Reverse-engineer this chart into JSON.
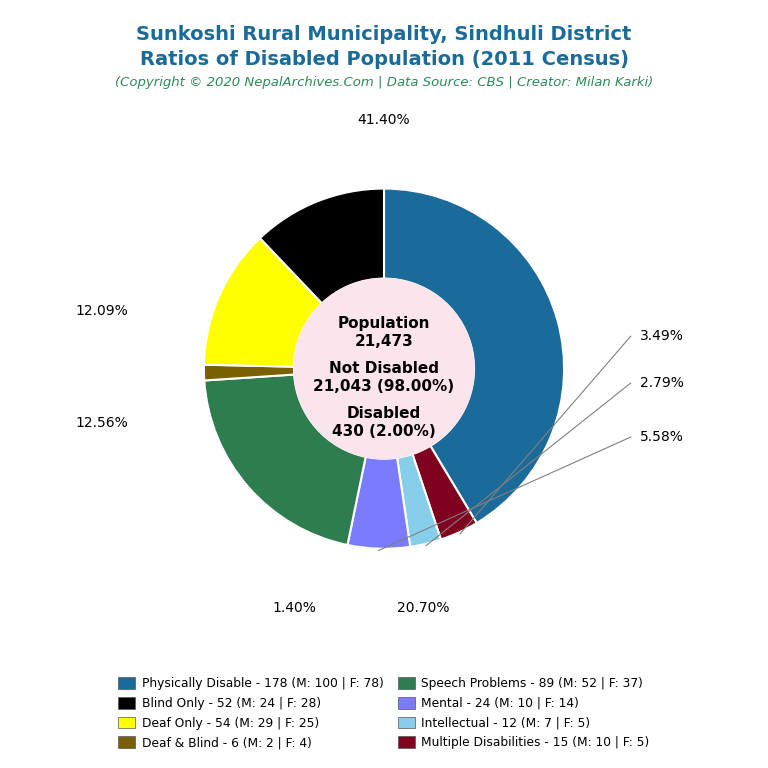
{
  "title_line1": "Sunkoshi Rural Municipality, Sindhuli District",
  "title_line2": "Ratios of Disabled Population (2011 Census)",
  "subtitle": "(Copyright © 2020 NepalArchives.Com | Data Source: CBS | Creator: Milan Karki)",
  "total_population": 21473,
  "not_disabled": 21043,
  "not_disabled_pct": 98.0,
  "disabled": 430,
  "disabled_pct": 2.0,
  "wedge_values": [
    178,
    15,
    12,
    24,
    89,
    6,
    54,
    52
  ],
  "wedge_colors": [
    "#1a6b9a",
    "#800020",
    "#87ceeb",
    "#7b7bff",
    "#2e7d4f",
    "#7a6000",
    "#ffff00",
    "#000000"
  ],
  "wedge_pcts": [
    "41.40%",
    "3.49%",
    "2.79%",
    "5.58%",
    "20.70%",
    "1.40%",
    "12.56%",
    "12.09%"
  ],
  "legend_labels": [
    "Physically Disable - 178 (M: 100 | F: 78)",
    "Blind Only - 52 (M: 24 | F: 28)",
    "Deaf Only - 54 (M: 29 | F: 25)",
    "Deaf & Blind - 6 (M: 2 | F: 4)",
    "Speech Problems - 89 (M: 52 | F: 37)",
    "Mental - 24 (M: 10 | F: 14)",
    "Intellectual - 12 (M: 7 | F: 5)",
    "Multiple Disabilities - 15 (M: 10 | F: 5)"
  ],
  "legend_colors": [
    "#1a6b9a",
    "#000000",
    "#ffff00",
    "#7a6000",
    "#2e7d4f",
    "#7b7bff",
    "#87ceeb",
    "#800020"
  ],
  "title_color": "#1a6b9a",
  "subtitle_color": "#2e8b57",
  "bg_color": "#ffffff",
  "center_bg": "#fce4ec"
}
